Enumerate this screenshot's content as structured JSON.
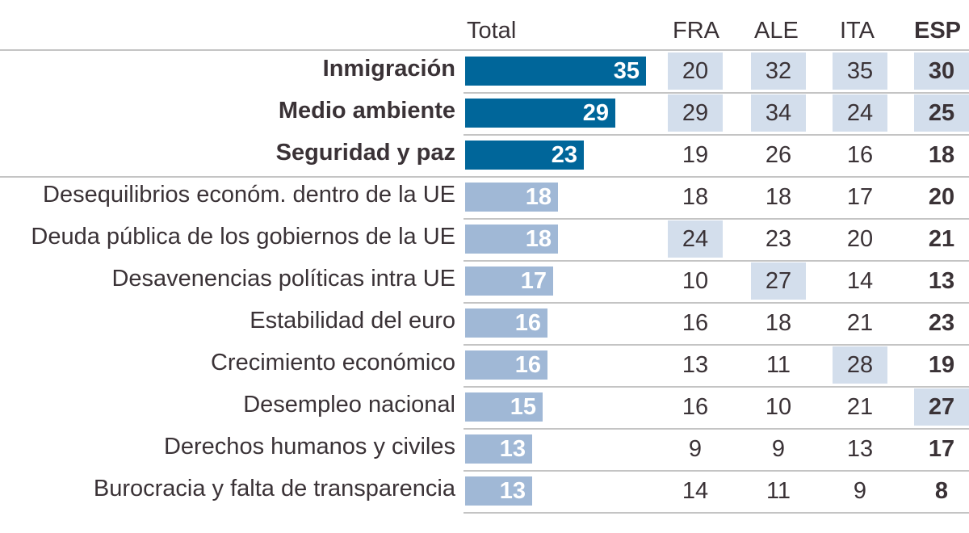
{
  "chart_data": {
    "type": "table",
    "title": "",
    "columns": [
      "Total",
      "FRA",
      "ALE",
      "ITA",
      "ESP"
    ],
    "bold_column": "ESP",
    "total_max": 35,
    "colors": {
      "top_bar": "#00669a",
      "other_bar": "#a0b8d6",
      "highlight_cell": "#d3deec",
      "text": "#3a3236",
      "rule": "#c4c4c4"
    },
    "rows": [
      {
        "label": "Inmigración",
        "bold": true,
        "total": 35,
        "FRA": 20,
        "ALE": 32,
        "ITA": 35,
        "ESP": 30,
        "highlight": [
          "FRA",
          "ALE",
          "ITA",
          "ESP"
        ]
      },
      {
        "label": "Medio ambiente",
        "bold": true,
        "total": 29,
        "FRA": 29,
        "ALE": 34,
        "ITA": 24,
        "ESP": 25,
        "highlight": [
          "FRA",
          "ALE",
          "ITA",
          "ESP"
        ]
      },
      {
        "label": "Seguridad y paz",
        "bold": true,
        "total": 23,
        "FRA": 19,
        "ALE": 26,
        "ITA": 16,
        "ESP": 18,
        "highlight": []
      },
      {
        "label": "Desequilibrios económ. dentro de la UE",
        "bold": false,
        "total": 18,
        "FRA": 18,
        "ALE": 18,
        "ITA": 17,
        "ESP": 20,
        "highlight": []
      },
      {
        "label": "Deuda pública de los gobiernos de la UE",
        "bold": false,
        "total": 18,
        "FRA": 24,
        "ALE": 23,
        "ITA": 20,
        "ESP": 21,
        "highlight": [
          "FRA"
        ]
      },
      {
        "label": "Desavenencias políticas intra UE",
        "bold": false,
        "total": 17,
        "FRA": 10,
        "ALE": 27,
        "ITA": 14,
        "ESP": 13,
        "highlight": [
          "ALE"
        ]
      },
      {
        "label": "Estabilidad del euro",
        "bold": false,
        "total": 16,
        "FRA": 16,
        "ALE": 18,
        "ITA": 21,
        "ESP": 23,
        "highlight": []
      },
      {
        "label": "Crecimiento económico",
        "bold": false,
        "total": 16,
        "FRA": 13,
        "ALE": 11,
        "ITA": 28,
        "ESP": 19,
        "highlight": [
          "ITA"
        ]
      },
      {
        "label": "Desempleo nacional",
        "bold": false,
        "total": 15,
        "FRA": 16,
        "ALE": 10,
        "ITA": 21,
        "ESP": 27,
        "highlight": [
          "ESP"
        ]
      },
      {
        "label": "Derechos humanos y civiles",
        "bold": false,
        "total": 13,
        "FRA": 9,
        "ALE": 9,
        "ITA": 13,
        "ESP": 17,
        "highlight": []
      },
      {
        "label": "Burocracia y falta de transparencia",
        "bold": false,
        "total": 13,
        "FRA": 14,
        "ALE": 11,
        "ITA": 9,
        "ESP": 8,
        "highlight": []
      }
    ]
  }
}
